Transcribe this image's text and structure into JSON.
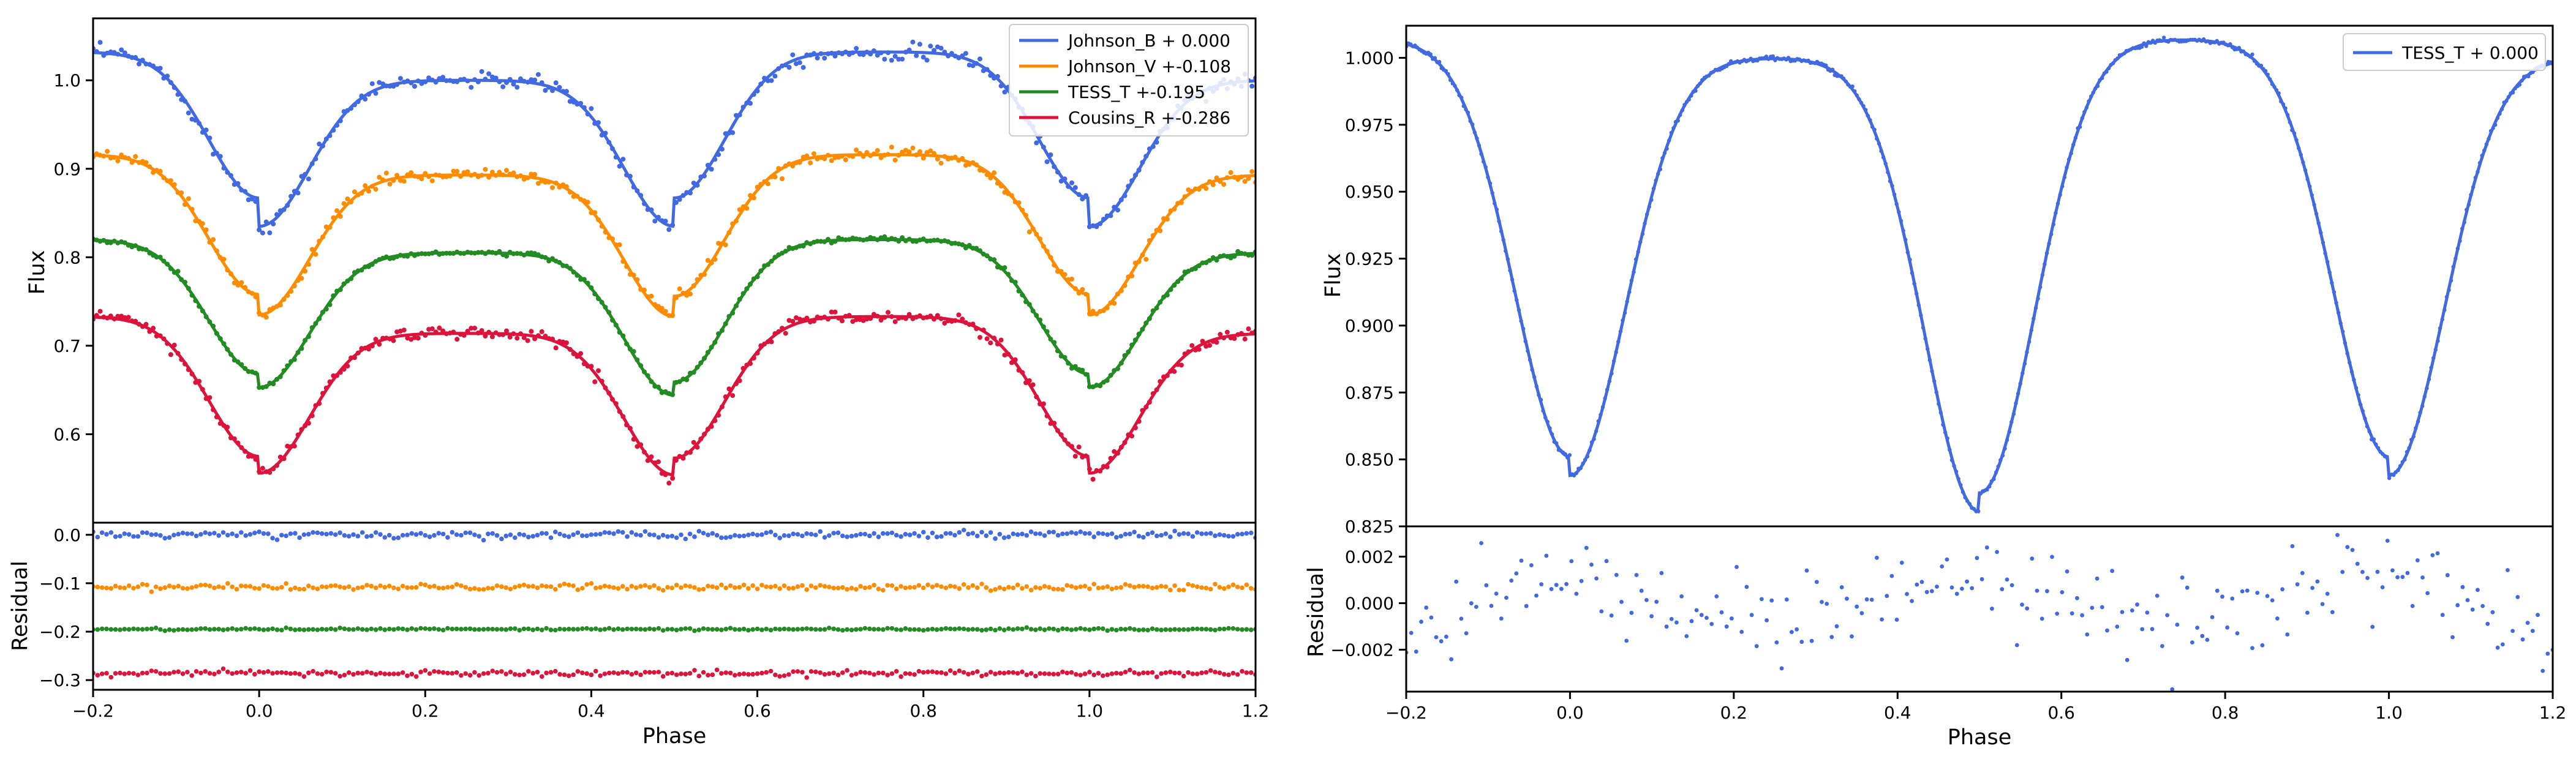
{
  "colors": {
    "Johnson_B": "#4169e1",
    "Johnson_V": "#ff8c00",
    "TESS_T": "#228b22",
    "Cousins_R": "#dc143c",
    "TESS_single": "#4169e1"
  },
  "chart_data": [
    {
      "id": "left",
      "type": "line",
      "xlabel": "Phase",
      "ylabel": "Flux",
      "ylabel_residual": "Residual",
      "xlim": [
        -0.2,
        1.2
      ],
      "ylim": [
        0.5,
        1.07
      ],
      "residual_ylim": [
        -0.32,
        0.025
      ],
      "x_ticks": [
        "-0.2",
        "0.0",
        "0.2",
        "0.4",
        "0.6",
        "0.8",
        "1.0",
        "1.2"
      ],
      "y_ticks": [
        "0.6",
        "0.7",
        "0.8",
        "0.9",
        "1.0"
      ],
      "residual_y_ticks": [
        "-0.3",
        "-0.2",
        "-0.1",
        "0.0"
      ],
      "legend_position": "top-right",
      "series": [
        {
          "name": "Johnson_B + 0.000",
          "color_key": "Johnson_B",
          "offset": 0.0,
          "depth_primary": 0.165,
          "depth_secondary": 0.165,
          "max_1": 1.0,
          "max_2": 1.032,
          "noise": 0.006,
          "residual_center": 0.0
        },
        {
          "name": "Johnson_V +-0.108",
          "color_key": "Johnson_V",
          "offset": -0.108,
          "depth_primary": 0.158,
          "depth_secondary": 0.16,
          "max_1": 0.893,
          "max_2": 0.916,
          "noise": 0.005,
          "residual_center": -0.108
        },
        {
          "name": "TESS_T +-0.195",
          "color_key": "TESS_T",
          "offset": -0.195,
          "depth_primary": 0.152,
          "depth_secondary": 0.161,
          "max_1": 0.805,
          "max_2": 0.82,
          "noise": 0.002,
          "residual_center": -0.195
        },
        {
          "name": "Cousins_R +-0.286",
          "color_key": "Cousins_R",
          "offset": -0.286,
          "depth_primary": 0.158,
          "depth_secondary": 0.16,
          "max_1": 0.714,
          "max_2": 0.733,
          "noise": 0.005,
          "residual_center": -0.286
        }
      ]
    },
    {
      "id": "right",
      "type": "line",
      "xlabel": "Phase",
      "ylabel": "Flux",
      "ylabel_residual": "Residual",
      "xlim": [
        -0.2,
        1.2
      ],
      "ylim": [
        0.825,
        1.012
      ],
      "residual_ylim": [
        -0.0038,
        0.0033
      ],
      "x_ticks": [
        "-0.2",
        "0.0",
        "0.2",
        "0.4",
        "0.6",
        "0.8",
        "1.0",
        "1.2"
      ],
      "y_ticks": [
        "0.825",
        "0.850",
        "0.875",
        "0.900",
        "0.925",
        "0.950",
        "0.975",
        "1.000"
      ],
      "residual_y_ticks": [
        "-0.002",
        "0.000",
        "0.002"
      ],
      "legend_position": "top-right",
      "series": [
        {
          "name": "TESS_T + 0.000",
          "color_key": "TESS_single",
          "offset": 0.0,
          "min_primary": 0.844,
          "min_secondary": 0.834,
          "max_1": 1.0,
          "max_2": 1.007,
          "noise": 0.0006,
          "residual_center": 0.0,
          "residual_amplitude": 0.002
        }
      ]
    }
  ]
}
